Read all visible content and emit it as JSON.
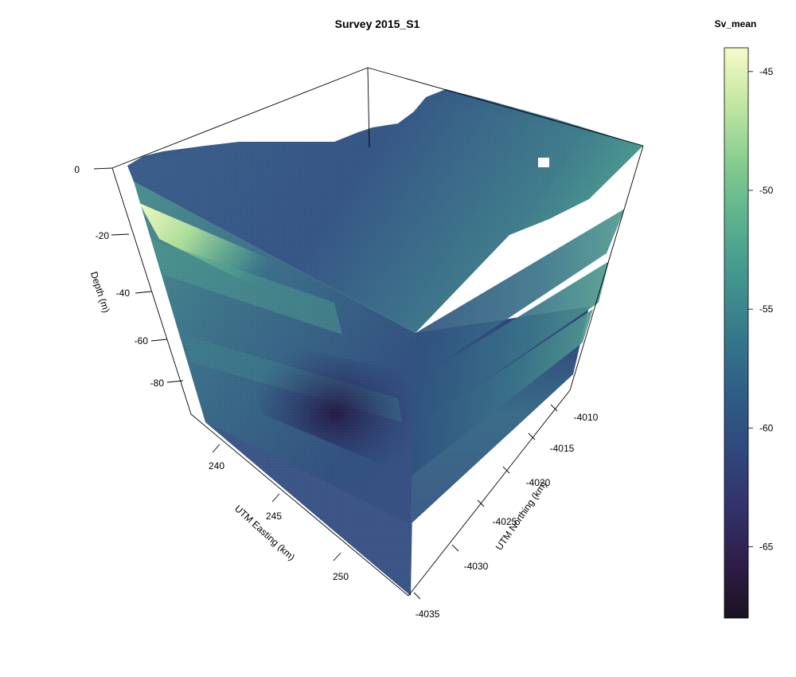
{
  "chart_data": {
    "type": "3d-volume",
    "title": "Survey 2015_S1",
    "axes": {
      "depth": {
        "label": "Depth (m)",
        "ticks": [
          0,
          -20,
          -40,
          -60,
          -80
        ],
        "range": [
          -100,
          0
        ]
      },
      "easting": {
        "label": "UTM Easting (km)",
        "ticks": [
          240,
          245,
          250
        ],
        "range": [
          236,
          253
        ]
      },
      "northing": {
        "label": "UTM Northing (km)",
        "ticks": [
          -4010,
          -4015,
          -4020,
          -4025,
          -4030,
          -4035
        ],
        "range": [
          -4035,
          -4007
        ]
      }
    },
    "slices_depth_m": [
      0,
      -25,
      -40,
      -55
    ],
    "colorbar": {
      "title": "Sv_mean",
      "ticks": [
        -45,
        -50,
        -55,
        -60,
        -65
      ],
      "range": [
        -68,
        -44
      ],
      "colormap": [
        "#1b1220",
        "#2e1f4a",
        "#33336e",
        "#2f4a7e",
        "#2f5f86",
        "#357a8c",
        "#44968e",
        "#5cb18f",
        "#86cd8e",
        "#c2e6a2",
        "#f5fbc6"
      ]
    }
  }
}
